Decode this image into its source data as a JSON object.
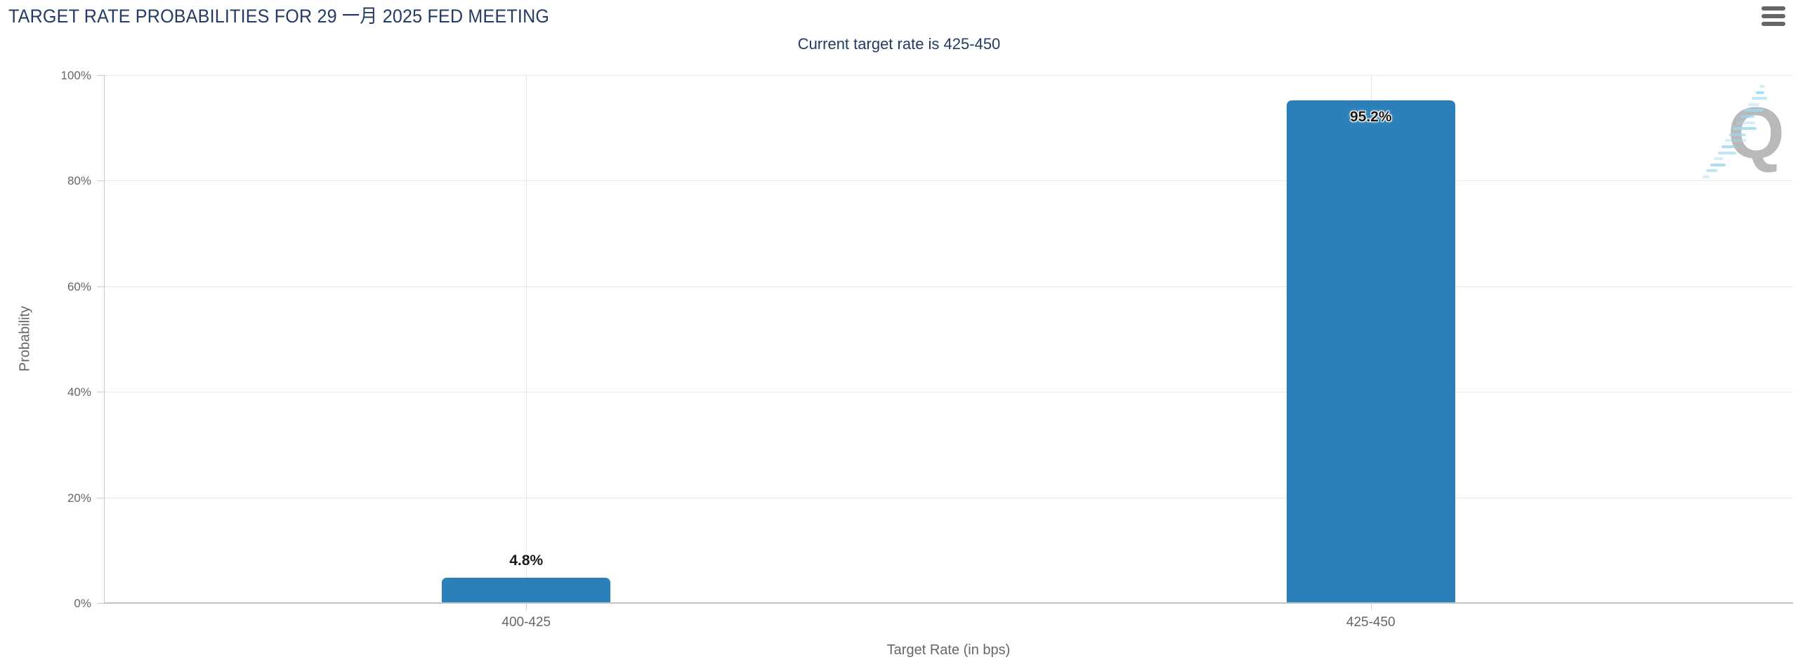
{
  "chart": {
    "title": "TARGET RATE PROBABILITIES FOR 29 一月 2025 FED MEETING",
    "subtitle": "Current target rate is 425-450",
    "watermark_letter": "Q"
  },
  "chart_data": {
    "type": "bar",
    "title": "TARGET RATE PROBABILITIES FOR 29 一月 2025 FED MEETING",
    "subtitle": "Current target rate is 425-450",
    "categories": [
      "400-425",
      "425-450"
    ],
    "values": [
      4.8,
      95.2
    ],
    "data_labels": [
      "4.8%",
      "95.2%"
    ],
    "xlabel": "Target Rate (in bps)",
    "ylabel": "Probability",
    "ylim": [
      0,
      100
    ],
    "ytick_values": [
      0,
      20,
      40,
      60,
      80,
      100
    ],
    "ytick_labels": [
      "0%",
      "20%",
      "40%",
      "60%",
      "80%",
      "100%"
    ],
    "grid": true,
    "legend": false,
    "bar_color": "#2c80ba",
    "title_color": "#243b63",
    "axis_text_color": "#666666"
  }
}
